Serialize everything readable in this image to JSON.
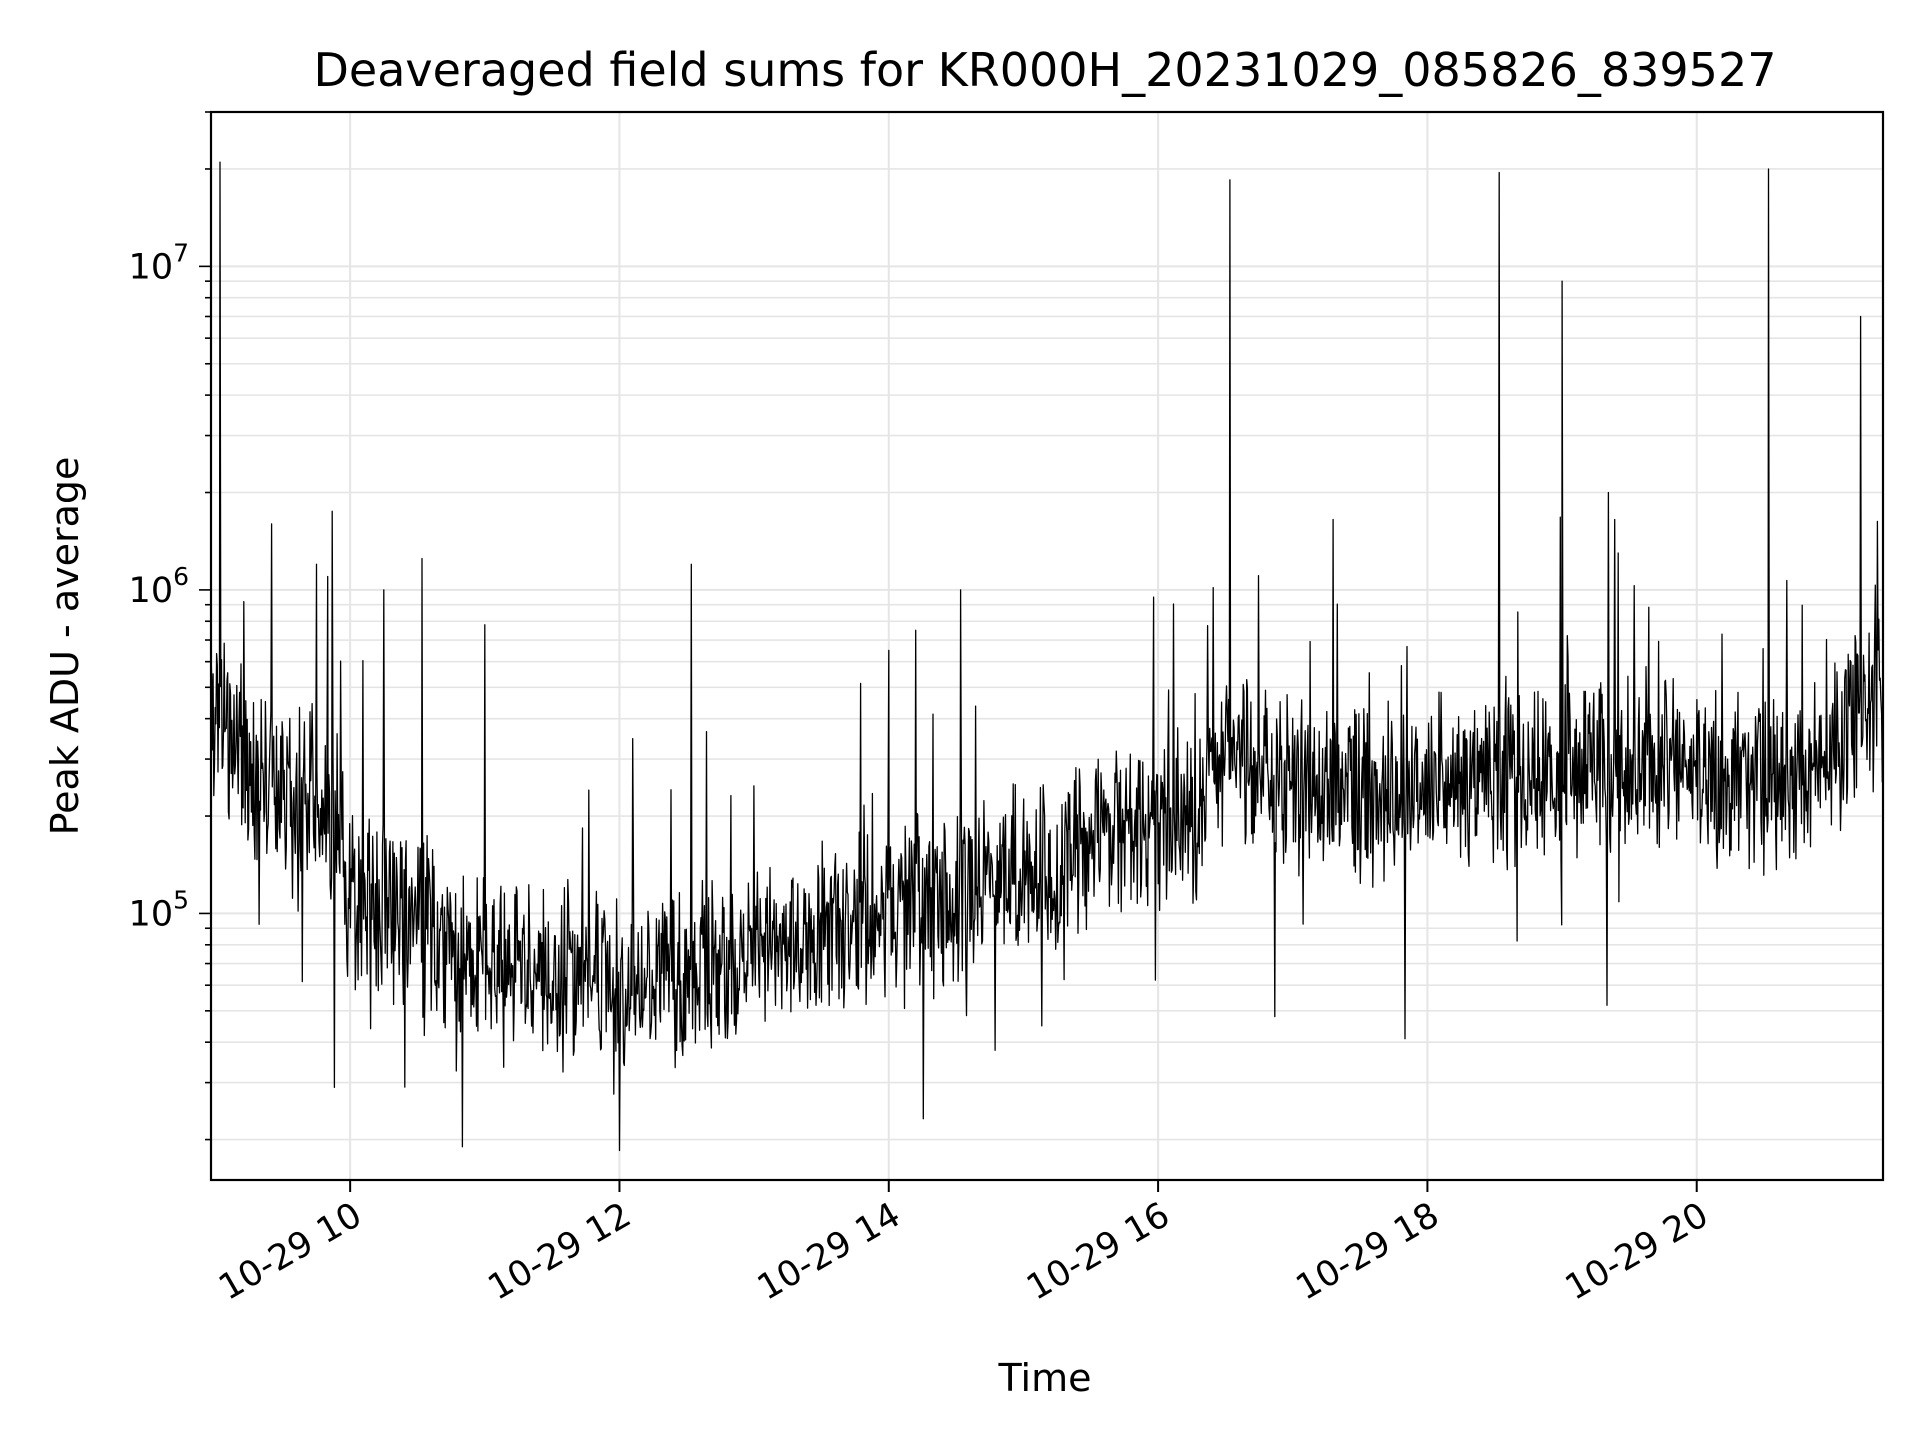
{
  "chart_data": {
    "type": "line",
    "title": "Deaveraged field sums for KR000H_20231029_085826_839527",
    "xlabel": "Time",
    "ylabel": "Peak ADU - average",
    "xlim": [
      "2023-10-29 08:58",
      "2023-10-29 21:23"
    ],
    "ylim": [
      15000,
      30000000
    ],
    "yscale": "log",
    "grid": true,
    "line_color": "#000000",
    "grid_color": "#e5e5e5",
    "x_ticks": [
      {
        "value": "2023-10-29 10:00",
        "label": "10-29 10"
      },
      {
        "value": "2023-10-29 12:00",
        "label": "10-29 12"
      },
      {
        "value": "2023-10-29 14:00",
        "label": "10-29 14"
      },
      {
        "value": "2023-10-29 16:00",
        "label": "10-29 16"
      },
      {
        "value": "2023-10-29 18:00",
        "label": "10-29 18"
      },
      {
        "value": "2023-10-29 20:00",
        "label": "10-29 20"
      }
    ],
    "y_ticks": [
      {
        "value": 100000,
        "base": "10",
        "exp": "5"
      },
      {
        "value": 1000000,
        "base": "10",
        "exp": "6"
      },
      {
        "value": 10000000,
        "base": "10",
        "exp": "7"
      }
    ],
    "series": [
      {
        "baseline": [
          {
            "t": "2023-10-29 08:58",
            "y": 420000
          },
          {
            "t": "2023-10-29 09:05",
            "y": 380000
          },
          {
            "t": "2023-10-29 09:20",
            "y": 270000
          },
          {
            "t": "2023-10-29 09:40",
            "y": 230000
          },
          {
            "t": "2023-10-29 09:55",
            "y": 190000
          },
          {
            "t": "2023-10-29 10:00",
            "y": 105000
          },
          {
            "t": "2023-10-29 10:30",
            "y": 95000
          },
          {
            "t": "2023-10-29 11:00",
            "y": 72000
          },
          {
            "t": "2023-10-29 11:30",
            "y": 65000
          },
          {
            "t": "2023-10-29 12:00",
            "y": 62000
          },
          {
            "t": "2023-10-29 12:30",
            "y": 62000
          },
          {
            "t": "2023-10-29 13:00",
            "y": 70000
          },
          {
            "t": "2023-10-29 13:30",
            "y": 85000
          },
          {
            "t": "2023-10-29 14:00",
            "y": 100000
          },
          {
            "t": "2023-10-29 14:30",
            "y": 115000
          },
          {
            "t": "2023-10-29 15:00",
            "y": 135000
          },
          {
            "t": "2023-10-29 15:30",
            "y": 160000
          },
          {
            "t": "2023-10-29 16:00",
            "y": 180000
          },
          {
            "t": "2023-10-29 16:20",
            "y": 200000
          },
          {
            "t": "2023-10-29 16:25",
            "y": 320000
          },
          {
            "t": "2023-10-29 16:45",
            "y": 300000
          },
          {
            "t": "2023-10-29 17:00",
            "y": 240000
          },
          {
            "t": "2023-10-29 17:30",
            "y": 230000
          },
          {
            "t": "2023-10-29 18:00",
            "y": 250000
          },
          {
            "t": "2023-10-29 18:30",
            "y": 270000
          },
          {
            "t": "2023-10-29 19:00",
            "y": 280000
          },
          {
            "t": "2023-10-29 19:30",
            "y": 300000
          },
          {
            "t": "2023-10-29 20:00",
            "y": 270000
          },
          {
            "t": "2023-10-29 20:30",
            "y": 260000
          },
          {
            "t": "2023-10-29 20:45",
            "y": 250000
          },
          {
            "t": "2023-10-29 21:00",
            "y": 330000
          },
          {
            "t": "2023-10-29 21:23",
            "y": 460000
          }
        ],
        "spikes": [
          {
            "t": "2023-10-29 09:02",
            "y": 21000000
          },
          {
            "t": "2023-10-29 09:25",
            "y": 1600000
          },
          {
            "t": "2023-10-29 09:45",
            "y": 1200000
          },
          {
            "t": "2023-10-29 09:50",
            "y": 1100000
          },
          {
            "t": "2023-10-29 09:52",
            "y": 1750000
          },
          {
            "t": "2023-10-29 10:15",
            "y": 1000000
          },
          {
            "t": "2023-10-29 10:32",
            "y": 1250000
          },
          {
            "t": "2023-10-29 11:00",
            "y": 780000
          },
          {
            "t": "2023-10-29 12:32",
            "y": 1200000
          },
          {
            "t": "2023-10-29 14:00",
            "y": 650000
          },
          {
            "t": "2023-10-29 14:12",
            "y": 750000
          },
          {
            "t": "2023-10-29 14:32",
            "y": 1000000
          },
          {
            "t": "2023-10-29 15:58",
            "y": 950000
          },
          {
            "t": "2023-10-29 16:32",
            "y": 18500000
          },
          {
            "t": "2023-10-29 17:18",
            "y": 1650000
          },
          {
            "t": "2023-10-29 18:32",
            "y": 19500000
          },
          {
            "t": "2023-10-29 19:00",
            "y": 9000000
          },
          {
            "t": "2023-10-29 19:25",
            "y": 1300000
          },
          {
            "t": "2023-10-29 20:32",
            "y": 20000000
          },
          {
            "t": "2023-10-29 21:13",
            "y": 7000000
          }
        ],
        "dips": [
          {
            "t": "2023-10-29 09:53",
            "y": 29000
          },
          {
            "t": "2023-10-29 10:50",
            "y": 19000
          },
          {
            "t": "2023-10-29 12:00",
            "y": 18500
          },
          {
            "t": "2023-10-29 16:52",
            "y": 48000
          },
          {
            "t": "2023-10-29 17:50",
            "y": 41000
          },
          {
            "t": "2023-10-29 19:20",
            "y": 52000
          }
        ]
      }
    ]
  }
}
